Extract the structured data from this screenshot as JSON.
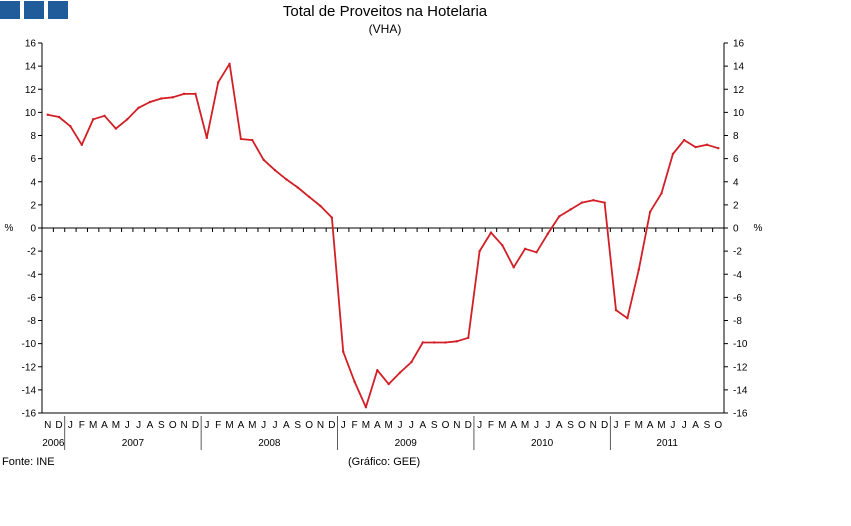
{
  "colors": {
    "line": "#d21f26",
    "axis": "#000000",
    "logo": "#1f5c99"
  },
  "logo_icon": "three-blue-squares-logo",
  "chart_data": {
    "type": "line",
    "title": "Total de Proveitos na Hotelaria",
    "subtitle": "(VHA)",
    "ylabel_left": "%",
    "ylabel_right": "%",
    "source": "Fonte: INE",
    "credit": "(Gráfico: GEE)",
    "ylim": [
      -16,
      16
    ],
    "yticks": [
      16,
      14,
      12,
      10,
      8,
      6,
      4,
      2,
      0,
      -2,
      -4,
      -6,
      -8,
      -10,
      -12,
      -14,
      -16
    ],
    "month_labels": [
      "N",
      "D",
      "J",
      "F",
      "M",
      "A",
      "M",
      "J",
      "J",
      "A",
      "S",
      "O",
      "N",
      "D",
      "J",
      "F",
      "M",
      "A",
      "M",
      "J",
      "J",
      "A",
      "S",
      "O",
      "N",
      "D",
      "J",
      "F",
      "M",
      "A",
      "M",
      "J",
      "J",
      "A",
      "S",
      "O",
      "N",
      "D",
      "J",
      "F",
      "M",
      "A",
      "M",
      "J",
      "J",
      "A",
      "S",
      "O",
      "N",
      "D",
      "J",
      "F",
      "M",
      "A",
      "M",
      "J",
      "J",
      "A",
      "S",
      "O"
    ],
    "years": [
      {
        "label": "2006",
        "start": 0,
        "end": 1
      },
      {
        "label": "2007",
        "start": 2,
        "end": 13
      },
      {
        "label": "2008",
        "start": 14,
        "end": 25
      },
      {
        "label": "2009",
        "start": 26,
        "end": 37
      },
      {
        "label": "2010",
        "start": 38,
        "end": 49
      },
      {
        "label": "2011",
        "start": 50,
        "end": 59
      }
    ],
    "series": [
      {
        "name": "Total de Proveitos na Hotelaria (VHA)",
        "values": [
          9.8,
          9.6,
          8.8,
          7.2,
          9.4,
          9.7,
          8.6,
          9.4,
          10.4,
          10.9,
          11.2,
          11.3,
          11.6,
          11.6,
          7.8,
          12.6,
          14.2,
          7.7,
          7.6,
          5.9,
          5.0,
          4.2,
          3.5,
          2.7,
          1.9,
          0.9,
          -10.7,
          -13.3,
          -15.5,
          -12.3,
          -13.5,
          -12.5,
          -11.6,
          -9.9,
          -9.9,
          -9.9,
          -9.8,
          -9.5,
          -2.0,
          -0.4,
          -1.5,
          -3.4,
          -1.8,
          -2.1,
          -0.5,
          1.0,
          1.6,
          2.2,
          2.4,
          2.2,
          -7.1,
          -7.8,
          -3.6,
          1.4,
          3.0,
          6.4,
          7.6,
          7.0,
          7.2,
          6.9
        ]
      }
    ]
  }
}
